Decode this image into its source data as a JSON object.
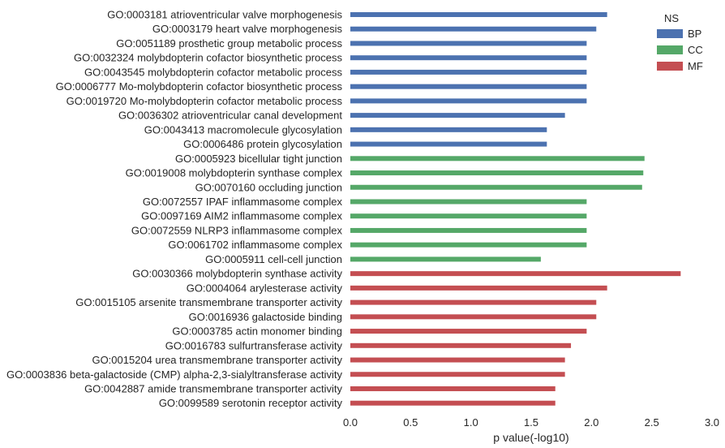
{
  "chart_data": {
    "type": "bar",
    "orientation": "horizontal",
    "xlabel": "p value(-log10)",
    "ylabel": "",
    "xlim": [
      0,
      3
    ],
    "xticks": [
      "0.0",
      "0.5",
      "1.0",
      "1.5",
      "2.0",
      "2.5",
      "3.0"
    ],
    "legend": {
      "title": "NS",
      "placement": "top-right",
      "items": [
        {
          "name": "BP",
          "color": "#4c72b0"
        },
        {
          "name": "CC",
          "color": "#55a868"
        },
        {
          "name": "MF",
          "color": "#c44e52"
        }
      ]
    },
    "categories": [
      {
        "label": "GO:0003181 atrioventricular valve morphogenesis",
        "ns": "BP",
        "value": 2.13
      },
      {
        "label": "GO:0003179 heart valve morphogenesis",
        "ns": "BP",
        "value": 2.04
      },
      {
        "label": "GO:0051189 prosthetic group metabolic process",
        "ns": "BP",
        "value": 1.96
      },
      {
        "label": "GO:0032324 molybdopterin cofactor biosynthetic process",
        "ns": "BP",
        "value": 1.96
      },
      {
        "label": "GO:0043545 molybdopterin cofactor metabolic process",
        "ns": "BP",
        "value": 1.96
      },
      {
        "label": "GO:0006777 Mo-molybdopterin cofactor biosynthetic process",
        "ns": "BP",
        "value": 1.96
      },
      {
        "label": "GO:0019720 Mo-molybdopterin cofactor metabolic process",
        "ns": "BP",
        "value": 1.96
      },
      {
        "label": "GO:0036302 atrioventricular canal development",
        "ns": "BP",
        "value": 1.78
      },
      {
        "label": "GO:0043413 macromolecule glycosylation",
        "ns": "BP",
        "value": 1.63
      },
      {
        "label": "GO:0006486 protein glycosylation",
        "ns": "BP",
        "value": 1.63
      },
      {
        "label": "GO:0005923 bicellular tight junction",
        "ns": "CC",
        "value": 2.44
      },
      {
        "label": "GO:0019008 molybdopterin synthase complex",
        "ns": "CC",
        "value": 2.43
      },
      {
        "label": "GO:0070160 occluding junction",
        "ns": "CC",
        "value": 2.42
      },
      {
        "label": "GO:0072557 IPAF inflammasome complex",
        "ns": "CC",
        "value": 1.96
      },
      {
        "label": "GO:0097169 AIM2 inflammasome complex",
        "ns": "CC",
        "value": 1.96
      },
      {
        "label": "GO:0072559 NLRP3 inflammasome complex",
        "ns": "CC",
        "value": 1.96
      },
      {
        "label": "GO:0061702 inflammasome complex",
        "ns": "CC",
        "value": 1.96
      },
      {
        "label": "GO:0005911 cell-cell junction",
        "ns": "CC",
        "value": 1.58
      },
      {
        "label": "GO:0030366 molybdopterin synthase activity",
        "ns": "MF",
        "value": 2.74
      },
      {
        "label": "GO:0004064 arylesterase activity",
        "ns": "MF",
        "value": 2.13
      },
      {
        "label": "GO:0015105 arsenite transmembrane transporter activity",
        "ns": "MF",
        "value": 2.04
      },
      {
        "label": "GO:0016936 galactoside binding",
        "ns": "MF",
        "value": 2.04
      },
      {
        "label": "GO:0003785 actin monomer binding",
        "ns": "MF",
        "value": 1.96
      },
      {
        "label": "GO:0016783 sulfurtransferase activity",
        "ns": "MF",
        "value": 1.83
      },
      {
        "label": "GO:0015204 urea transmembrane transporter activity",
        "ns": "MF",
        "value": 1.78
      },
      {
        "label": "GO:0003836 beta-galactoside (CMP) alpha-2,3-sialyltransferase activity",
        "ns": "MF",
        "value": 1.78
      },
      {
        "label": "GO:0042887 amide transmembrane transporter activity",
        "ns": "MF",
        "value": 1.7
      },
      {
        "label": "GO:0099589 serotonin receptor activity",
        "ns": "MF",
        "value": 1.7
      }
    ]
  }
}
